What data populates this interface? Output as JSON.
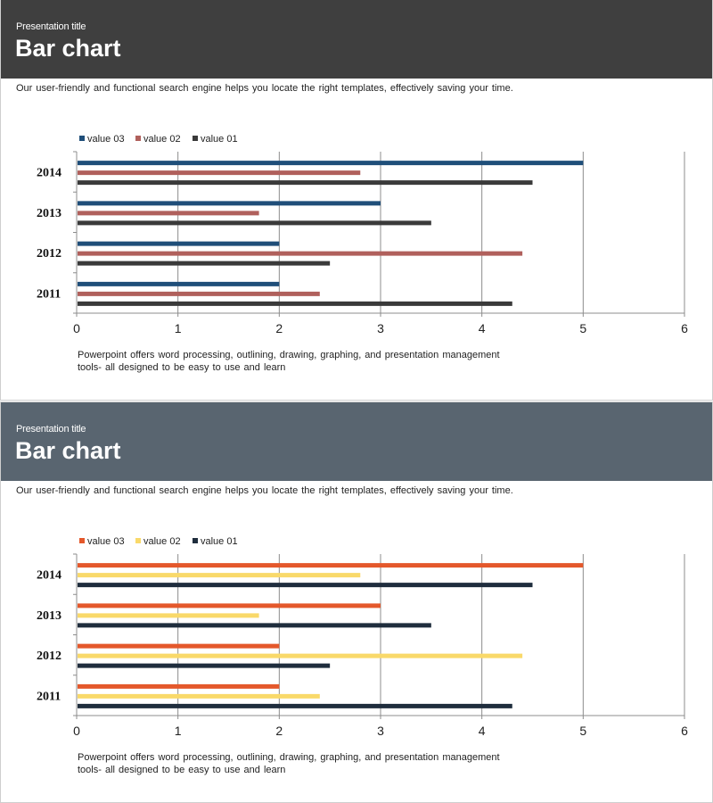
{
  "slides": [
    {
      "header": {
        "presentation_title": "Presentation title",
        "title": "Bar chart"
      },
      "subtitle": "Our user-friendly  and functional  search engine  helps  you locate the right templates,  effectively  saving  your time.",
      "footnote": "Powerpoint  offers  word processing,  outlining,  drawing,  graphing,  and  presentation  management tools- all designed to be easy to use and learn",
      "colors": {
        "value 03": "#1f4e79",
        "value 02": "#b0605c",
        "value 01": "#3a3a3a"
      }
    },
    {
      "header": {
        "presentation_title": "Presentation title",
        "title": "Bar chart"
      },
      "subtitle": "Our user-friendly  and functional  search engine  helps  you locate the right templates,  effectively  saving  your time.",
      "footnote": "Powerpoint  offers  word processing,  outlining,  drawing,  graphing,  and  presentation  management tools- all designed to be easy to use and learn",
      "colors": {
        "value 03": "#e4582b",
        "value 02": "#f9d96a",
        "value 01": "#1f2d3d"
      }
    }
  ],
  "chart_data": [
    {
      "type": "bar",
      "orientation": "horizontal",
      "categories": [
        "2011",
        "2012",
        "2013",
        "2014"
      ],
      "series": [
        {
          "name": "value 01",
          "values": [
            4.3,
            2.5,
            3.5,
            4.5
          ]
        },
        {
          "name": "value 02",
          "values": [
            2.4,
            4.4,
            1.8,
            2.8
          ]
        },
        {
          "name": "value 03",
          "values": [
            2.0,
            2.0,
            3.0,
            5.0
          ]
        }
      ],
      "legend_order": [
        "value 03",
        "value 02",
        "value 01"
      ],
      "xlim": [
        0,
        6
      ],
      "xticks": [
        "0",
        "1",
        "2",
        "3",
        "4",
        "5",
        "6"
      ],
      "grid": true,
      "legend_position": "top-left"
    },
    {
      "type": "bar",
      "orientation": "horizontal",
      "categories": [
        "2011",
        "2012",
        "2013",
        "2014"
      ],
      "series": [
        {
          "name": "value 01",
          "values": [
            4.3,
            2.5,
            3.5,
            4.5
          ]
        },
        {
          "name": "value 02",
          "values": [
            2.4,
            4.4,
            1.8,
            2.8
          ]
        },
        {
          "name": "value 03",
          "values": [
            2.0,
            2.0,
            3.0,
            5.0
          ]
        }
      ],
      "legend_order": [
        "value 03",
        "value 02",
        "value 01"
      ],
      "xlim": [
        0,
        6
      ],
      "xticks": [
        "0",
        "1",
        "2",
        "3",
        "4",
        "5",
        "6"
      ],
      "grid": true,
      "legend_position": "top-left"
    }
  ]
}
